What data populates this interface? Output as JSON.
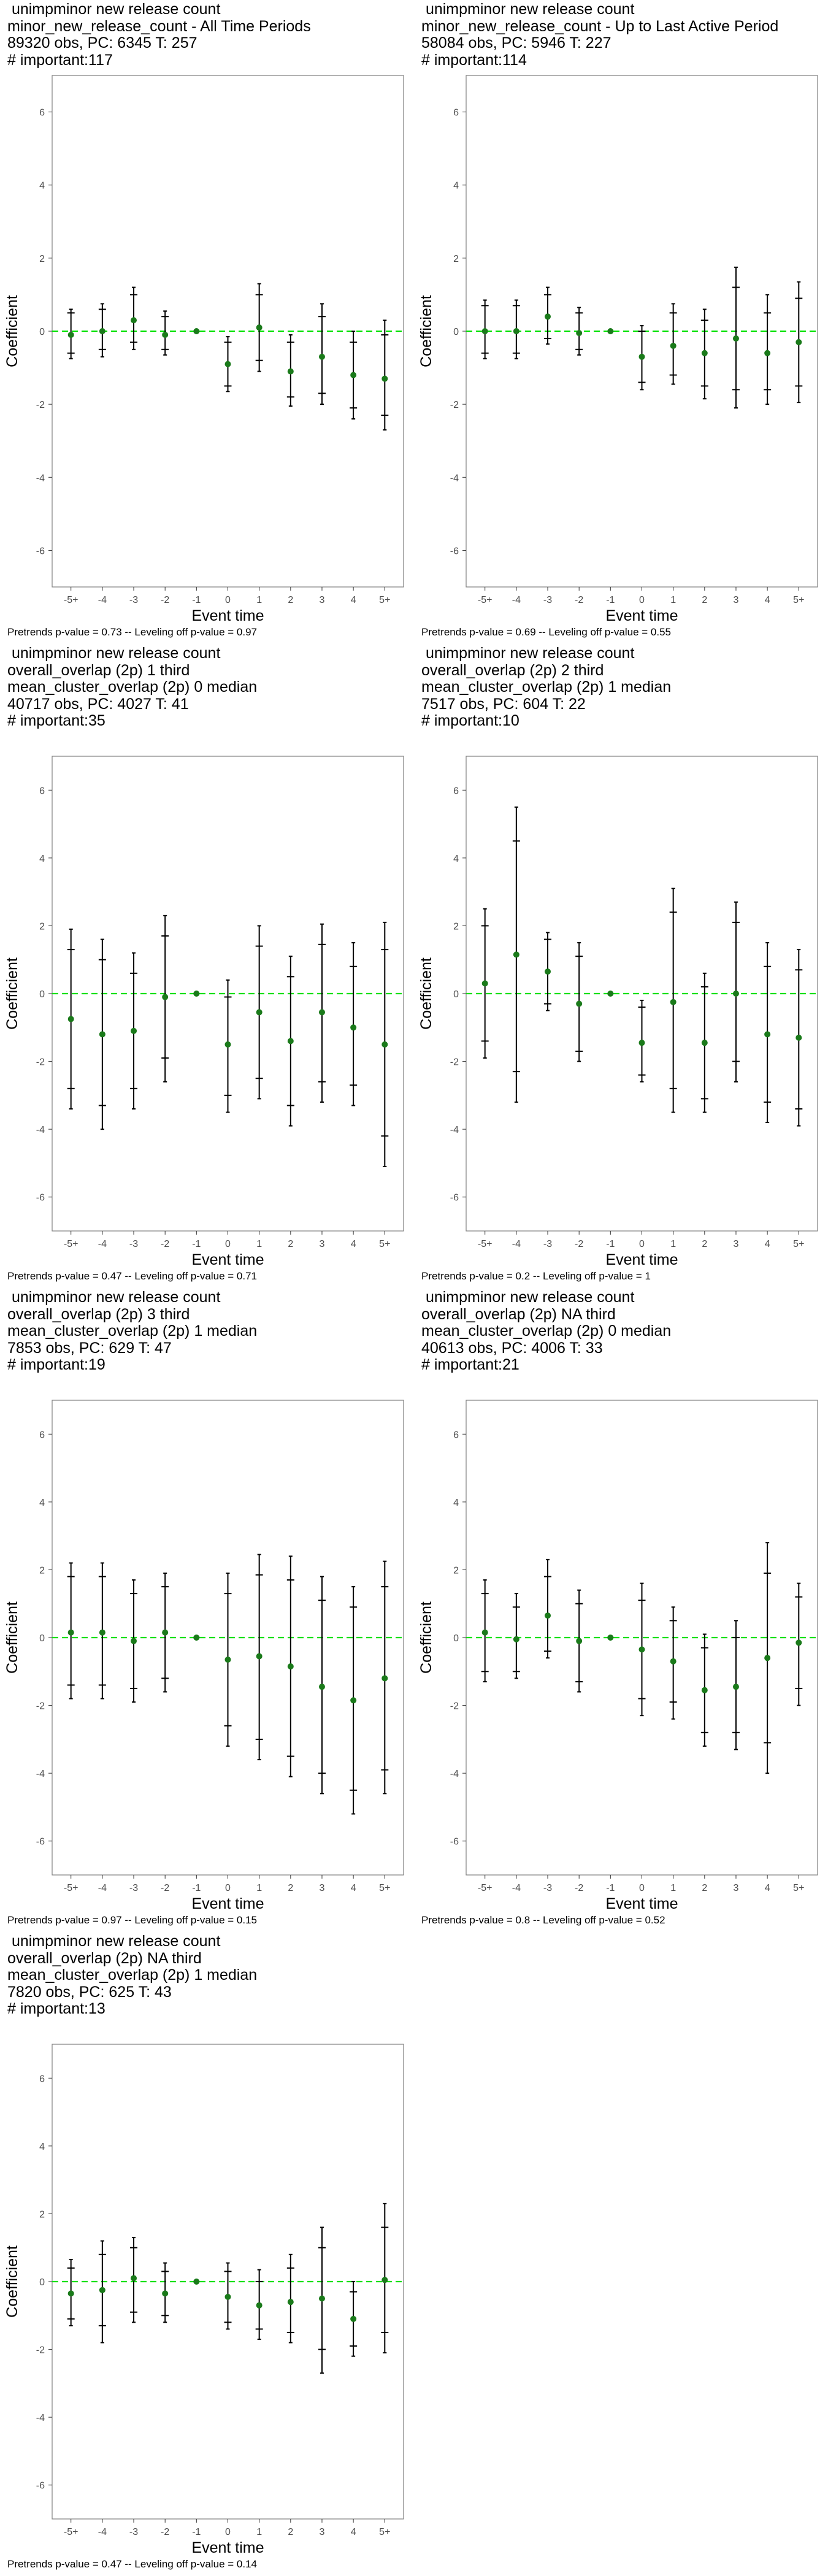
{
  "chart_data": [
    {
      "type": "scatter",
      "titles": [
        " unimpminor new release count",
        "minor_new_release_count - All Time Periods",
        "89320 obs, PC: 6345 T: 257",
        "# important:117"
      ],
      "xlabel": "Event time",
      "ylabel": "Coefficient",
      "ylim": [
        -7,
        7
      ],
      "yticks": [
        -6,
        -4,
        -2,
        0,
        2,
        4,
        6
      ],
      "categories": [
        "-5+",
        "-4",
        "-3",
        "-2",
        "-1",
        "0",
        "1",
        "2",
        "3",
        "4",
        "5+"
      ],
      "points": [
        {
          "x": "-5+",
          "y": -0.1,
          "ci": [
            -0.6,
            0.5
          ],
          "ci_outer": [
            -0.75,
            0.6
          ]
        },
        {
          "x": "-4",
          "y": 0.0,
          "ci": [
            -0.5,
            0.6
          ],
          "ci_outer": [
            -0.7,
            0.75
          ]
        },
        {
          "x": "-3",
          "y": 0.3,
          "ci": [
            -0.3,
            1.0
          ],
          "ci_outer": [
            -0.5,
            1.2
          ]
        },
        {
          "x": "-2",
          "y": -0.1,
          "ci": [
            -0.5,
            0.4
          ],
          "ci_outer": [
            -0.65,
            0.55
          ]
        },
        {
          "x": "-1",
          "y": 0.0
        },
        {
          "x": "0",
          "y": -0.9,
          "ci": [
            -1.5,
            -0.3
          ],
          "ci_outer": [
            -1.65,
            -0.15
          ]
        },
        {
          "x": "1",
          "y": 0.1,
          "ci": [
            -0.8,
            1.0
          ],
          "ci_outer": [
            -1.1,
            1.3
          ]
        },
        {
          "x": "2",
          "y": -1.1,
          "ci": [
            -1.8,
            -0.3
          ],
          "ci_outer": [
            -2.05,
            -0.1
          ]
        },
        {
          "x": "3",
          "y": -0.7,
          "ci": [
            -1.7,
            0.4
          ],
          "ci_outer": [
            -2.0,
            0.75
          ]
        },
        {
          "x": "4",
          "y": -1.2,
          "ci": [
            -2.1,
            -0.3
          ],
          "ci_outer": [
            -2.4,
            0.0
          ]
        },
        {
          "x": "5+",
          "y": -1.3,
          "ci": [
            -2.3,
            -0.1
          ],
          "ci_outer": [
            -2.7,
            0.3
          ]
        }
      ],
      "footnote": "Pretrends p-value = 0.73 -- Leveling off p-value = 0.97"
    },
    {
      "type": "scatter",
      "titles": [
        " unimpminor new release count",
        "minor_new_release_count - Up to Last Active Period",
        "58084 obs, PC: 5946 T: 227",
        "# important:114"
      ],
      "xlabel": "Event time",
      "ylabel": "Coefficient",
      "ylim": [
        -7,
        7
      ],
      "yticks": [
        -6,
        -4,
        -2,
        0,
        2,
        4,
        6
      ],
      "categories": [
        "-5+",
        "-4",
        "-3",
        "-2",
        "-1",
        "0",
        "1",
        "2",
        "3",
        "4",
        "5+"
      ],
      "points": [
        {
          "x": "-5+",
          "y": 0.0,
          "ci": [
            -0.6,
            0.7
          ],
          "ci_outer": [
            -0.75,
            0.85
          ]
        },
        {
          "x": "-4",
          "y": 0.0,
          "ci": [
            -0.6,
            0.7
          ],
          "ci_outer": [
            -0.75,
            0.85
          ]
        },
        {
          "x": "-3",
          "y": 0.4,
          "ci": [
            -0.2,
            1.0
          ],
          "ci_outer": [
            -0.35,
            1.2
          ]
        },
        {
          "x": "-2",
          "y": -0.05,
          "ci": [
            -0.5,
            0.5
          ],
          "ci_outer": [
            -0.65,
            0.65
          ]
        },
        {
          "x": "-1",
          "y": 0.0
        },
        {
          "x": "0",
          "y": -0.7,
          "ci": [
            -1.4,
            0.0
          ],
          "ci_outer": [
            -1.6,
            0.15
          ]
        },
        {
          "x": "1",
          "y": -0.4,
          "ci": [
            -1.2,
            0.5
          ],
          "ci_outer": [
            -1.45,
            0.75
          ]
        },
        {
          "x": "2",
          "y": -0.6,
          "ci": [
            -1.5,
            0.3
          ],
          "ci_outer": [
            -1.85,
            0.6
          ]
        },
        {
          "x": "3",
          "y": -0.2,
          "ci": [
            -1.6,
            1.2
          ],
          "ci_outer": [
            -2.1,
            1.75
          ]
        },
        {
          "x": "4",
          "y": -0.6,
          "ci": [
            -1.6,
            0.5
          ],
          "ci_outer": [
            -2.0,
            1.0
          ]
        },
        {
          "x": "5+",
          "y": -0.3,
          "ci": [
            -1.5,
            0.9
          ],
          "ci_outer": [
            -1.95,
            1.35
          ]
        }
      ],
      "footnote": "Pretrends p-value = 0.69 -- Leveling off p-value = 0.55"
    },
    {
      "type": "scatter",
      "titles": [
        " unimpminor new release count",
        "overall_overlap (2p) 1 third",
        "mean_cluster_overlap (2p) 0 median",
        "40717 obs, PC: 4027 T: 41",
        "# important:35"
      ],
      "xlabel": "Event time",
      "ylabel": "Coefficient",
      "ylim": [
        -7,
        7
      ],
      "yticks": [
        -6,
        -4,
        -2,
        0,
        2,
        4,
        6
      ],
      "categories": [
        "-5+",
        "-4",
        "-3",
        "-2",
        "-1",
        "0",
        "1",
        "2",
        "3",
        "4",
        "5+"
      ],
      "points": [
        {
          "x": "-5+",
          "y": -0.75,
          "ci": [
            -2.8,
            1.3
          ],
          "ci_outer": [
            -3.4,
            1.9
          ]
        },
        {
          "x": "-4",
          "y": -1.2,
          "ci": [
            -3.3,
            1.0
          ],
          "ci_outer": [
            -4.0,
            1.6
          ]
        },
        {
          "x": "-3",
          "y": -1.1,
          "ci": [
            -2.8,
            0.6
          ],
          "ci_outer": [
            -3.4,
            1.2
          ]
        },
        {
          "x": "-2",
          "y": -0.1,
          "ci": [
            -1.9,
            1.7
          ],
          "ci_outer": [
            -2.6,
            2.3
          ]
        },
        {
          "x": "-1",
          "y": 0.0
        },
        {
          "x": "0",
          "y": -1.5,
          "ci": [
            -3.0,
            -0.1
          ],
          "ci_outer": [
            -3.5,
            0.4
          ]
        },
        {
          "x": "1",
          "y": -0.55,
          "ci": [
            -2.5,
            1.4
          ],
          "ci_outer": [
            -3.1,
            2.0
          ]
        },
        {
          "x": "2",
          "y": -1.4,
          "ci": [
            -3.3,
            0.5
          ],
          "ci_outer": [
            -3.9,
            1.1
          ]
        },
        {
          "x": "3",
          "y": -0.55,
          "ci": [
            -2.6,
            1.45
          ],
          "ci_outer": [
            -3.2,
            2.05
          ]
        },
        {
          "x": "4",
          "y": -1.0,
          "ci": [
            -2.7,
            0.8
          ],
          "ci_outer": [
            -3.3,
            1.5
          ]
        },
        {
          "x": "5+",
          "y": -1.5,
          "ci": [
            -4.2,
            1.3
          ],
          "ci_outer": [
            -5.1,
            2.1
          ]
        }
      ],
      "footnote": "Pretrends p-value = 0.47 -- Leveling off p-value = 0.71"
    },
    {
      "type": "scatter",
      "titles": [
        " unimpminor new release count",
        "overall_overlap (2p) 2 third",
        "mean_cluster_overlap (2p) 1 median",
        "7517 obs, PC: 604 T: 22",
        "# important:10"
      ],
      "xlabel": "Event time",
      "ylabel": "Coefficient",
      "ylim": [
        -7,
        7
      ],
      "yticks": [
        -6,
        -4,
        -2,
        0,
        2,
        4,
        6
      ],
      "categories": [
        "-5+",
        "-4",
        "-3",
        "-2",
        "-1",
        "0",
        "1",
        "2",
        "3",
        "4",
        "5+"
      ],
      "points": [
        {
          "x": "-5+",
          "y": 0.3,
          "ci": [
            -1.4,
            2.0
          ],
          "ci_outer": [
            -1.9,
            2.5
          ]
        },
        {
          "x": "-4",
          "y": 1.15,
          "ci": [
            -2.3,
            4.5
          ],
          "ci_outer": [
            -3.2,
            5.5
          ]
        },
        {
          "x": "-3",
          "y": 0.65,
          "ci": [
            -0.3,
            1.6
          ],
          "ci_outer": [
            -0.5,
            1.8
          ]
        },
        {
          "x": "-2",
          "y": -0.3,
          "ci": [
            -1.7,
            1.1
          ],
          "ci_outer": [
            -2.0,
            1.5
          ]
        },
        {
          "x": "-1",
          "y": 0.0
        },
        {
          "x": "0",
          "y": -1.45,
          "ci": [
            -2.4,
            -0.4
          ],
          "ci_outer": [
            -2.6,
            -0.2
          ]
        },
        {
          "x": "1",
          "y": -0.25,
          "ci": [
            -2.8,
            2.4
          ],
          "ci_outer": [
            -3.5,
            3.1
          ]
        },
        {
          "x": "2",
          "y": -1.45,
          "ci": [
            -3.1,
            0.2
          ],
          "ci_outer": [
            -3.5,
            0.6
          ]
        },
        {
          "x": "3",
          "y": 0.0,
          "ci": [
            -2.0,
            2.1
          ],
          "ci_outer": [
            -2.6,
            2.7
          ]
        },
        {
          "x": "4",
          "y": -1.2,
          "ci": [
            -3.2,
            0.8
          ],
          "ci_outer": [
            -3.8,
            1.5
          ]
        },
        {
          "x": "5+",
          "y": -1.3,
          "ci": [
            -3.4,
            0.7
          ],
          "ci_outer": [
            -3.9,
            1.3
          ]
        }
      ],
      "footnote": "Pretrends p-value = 0.2 -- Leveling off p-value = 1"
    },
    {
      "type": "scatter",
      "titles": [
        " unimpminor new release count",
        "overall_overlap (2p) 3 third",
        "mean_cluster_overlap (2p) 1 median",
        "7853 obs, PC: 629 T: 47",
        "# important:19"
      ],
      "xlabel": "Event time",
      "ylabel": "Coefficient",
      "ylim": [
        -7,
        7
      ],
      "yticks": [
        -6,
        -4,
        -2,
        0,
        2,
        4,
        6
      ],
      "categories": [
        "-5+",
        "-4",
        "-3",
        "-2",
        "-1",
        "0",
        "1",
        "2",
        "3",
        "4",
        "5+"
      ],
      "points": [
        {
          "x": "-5+",
          "y": 0.15,
          "ci": [
            -1.4,
            1.8
          ],
          "ci_outer": [
            -1.8,
            2.2
          ]
        },
        {
          "x": "-4",
          "y": 0.15,
          "ci": [
            -1.4,
            1.8
          ],
          "ci_outer": [
            -1.8,
            2.2
          ]
        },
        {
          "x": "-3",
          "y": -0.1,
          "ci": [
            -1.5,
            1.3
          ],
          "ci_outer": [
            -1.9,
            1.7
          ]
        },
        {
          "x": "-2",
          "y": 0.15,
          "ci": [
            -1.2,
            1.5
          ],
          "ci_outer": [
            -1.6,
            1.9
          ]
        },
        {
          "x": "-1",
          "y": 0.0
        },
        {
          "x": "0",
          "y": -0.65,
          "ci": [
            -2.6,
            1.3
          ],
          "ci_outer": [
            -3.2,
            1.9
          ]
        },
        {
          "x": "1",
          "y": -0.55,
          "ci": [
            -3.0,
            1.85
          ],
          "ci_outer": [
            -3.6,
            2.45
          ]
        },
        {
          "x": "2",
          "y": -0.85,
          "ci": [
            -3.5,
            1.7
          ],
          "ci_outer": [
            -4.1,
            2.4
          ]
        },
        {
          "x": "3",
          "y": -1.45,
          "ci": [
            -4.0,
            1.1
          ],
          "ci_outer": [
            -4.6,
            1.8
          ]
        },
        {
          "x": "4",
          "y": -1.85,
          "ci": [
            -4.5,
            0.9
          ],
          "ci_outer": [
            -5.2,
            1.5
          ]
        },
        {
          "x": "5+",
          "y": -1.2,
          "ci": [
            -3.9,
            1.5
          ],
          "ci_outer": [
            -4.6,
            2.25
          ]
        }
      ],
      "footnote": "Pretrends p-value = 0.97 -- Leveling off p-value = 0.15"
    },
    {
      "type": "scatter",
      "titles": [
        " unimpminor new release count",
        "overall_overlap (2p) NA third",
        "mean_cluster_overlap (2p) 0 median",
        "40613 obs, PC: 4006 T: 33",
        "# important:21"
      ],
      "xlabel": "Event time",
      "ylabel": "Coefficient",
      "ylim": [
        -7,
        7
      ],
      "yticks": [
        -6,
        -4,
        -2,
        0,
        2,
        4,
        6
      ],
      "categories": [
        "-5+",
        "-4",
        "-3",
        "-2",
        "-1",
        "0",
        "1",
        "2",
        "3",
        "4",
        "5+"
      ],
      "points": [
        {
          "x": "-5+",
          "y": 0.15,
          "ci": [
            -1.0,
            1.3
          ],
          "ci_outer": [
            -1.3,
            1.7
          ]
        },
        {
          "x": "-4",
          "y": -0.05,
          "ci": [
            -1.0,
            0.9
          ],
          "ci_outer": [
            -1.2,
            1.3
          ]
        },
        {
          "x": "-3",
          "y": 0.65,
          "ci": [
            -0.4,
            1.8
          ],
          "ci_outer": [
            -0.6,
            2.3
          ]
        },
        {
          "x": "-2",
          "y": -0.1,
          "ci": [
            -1.3,
            1.0
          ],
          "ci_outer": [
            -1.6,
            1.4
          ]
        },
        {
          "x": "-1",
          "y": 0.0
        },
        {
          "x": "0",
          "y": -0.35,
          "ci": [
            -1.8,
            1.1
          ],
          "ci_outer": [
            -2.3,
            1.6
          ]
        },
        {
          "x": "1",
          "y": -0.7,
          "ci": [
            -1.9,
            0.5
          ],
          "ci_outer": [
            -2.4,
            0.9
          ]
        },
        {
          "x": "2",
          "y": -1.55,
          "ci": [
            -2.8,
            -0.3
          ],
          "ci_outer": [
            -3.2,
            0.1
          ]
        },
        {
          "x": "3",
          "y": -1.45,
          "ci": [
            -2.8,
            0.0
          ],
          "ci_outer": [
            -3.3,
            0.5
          ]
        },
        {
          "x": "4",
          "y": -0.6,
          "ci": [
            -3.1,
            1.9
          ],
          "ci_outer": [
            -4.0,
            2.8
          ]
        },
        {
          "x": "5+",
          "y": -0.15,
          "ci": [
            -1.5,
            1.2
          ],
          "ci_outer": [
            -2.0,
            1.6
          ]
        }
      ],
      "footnote": "Pretrends p-value = 0.8 -- Leveling off p-value = 0.52"
    },
    {
      "type": "scatter",
      "titles": [
        " unimpminor new release count",
        "overall_overlap (2p) NA third",
        "mean_cluster_overlap (2p) 1 median",
        "7820 obs, PC: 625 T: 43",
        "# important:13"
      ],
      "xlabel": "Event time",
      "ylabel": "Coefficient",
      "ylim": [
        -7,
        7
      ],
      "yticks": [
        -6,
        -4,
        -2,
        0,
        2,
        4,
        6
      ],
      "categories": [
        "-5+",
        "-4",
        "-3",
        "-2",
        "-1",
        "0",
        "1",
        "2",
        "3",
        "4",
        "5+"
      ],
      "points": [
        {
          "x": "-5+",
          "y": -0.35,
          "ci": [
            -1.1,
            0.4
          ],
          "ci_outer": [
            -1.3,
            0.65
          ]
        },
        {
          "x": "-4",
          "y": -0.25,
          "ci": [
            -1.3,
            0.8
          ],
          "ci_outer": [
            -1.8,
            1.2
          ]
        },
        {
          "x": "-3",
          "y": 0.1,
          "ci": [
            -0.9,
            1.0
          ],
          "ci_outer": [
            -1.2,
            1.3
          ]
        },
        {
          "x": "-2",
          "y": -0.35,
          "ci": [
            -1.0,
            0.3
          ],
          "ci_outer": [
            -1.2,
            0.55
          ]
        },
        {
          "x": "-1",
          "y": 0.0
        },
        {
          "x": "0",
          "y": -0.45,
          "ci": [
            -1.2,
            0.3
          ],
          "ci_outer": [
            -1.4,
            0.55
          ]
        },
        {
          "x": "1",
          "y": -0.7,
          "ci": [
            -1.4,
            0.0
          ],
          "ci_outer": [
            -1.7,
            0.35
          ]
        },
        {
          "x": "2",
          "y": -0.6,
          "ci": [
            -1.5,
            0.4
          ],
          "ci_outer": [
            -1.8,
            0.8
          ]
        },
        {
          "x": "3",
          "y": -0.5,
          "ci": [
            -2.0,
            1.0
          ],
          "ci_outer": [
            -2.7,
            1.6
          ]
        },
        {
          "x": "4",
          "y": -1.1,
          "ci": [
            -1.9,
            -0.3
          ],
          "ci_outer": [
            -2.2,
            0.0
          ]
        },
        {
          "x": "5+",
          "y": 0.05,
          "ci": [
            -1.5,
            1.6
          ],
          "ci_outer": [
            -2.1,
            2.3
          ]
        }
      ],
      "footnote": "Pretrends p-value = 0.47 -- Leveling off p-value = 0.14"
    }
  ],
  "colors": {
    "point": "#1a7a1a",
    "reference_line": "#00e000",
    "error_bar": "#000000",
    "panel_border": "#7f7f7f",
    "tick_label": "#4d4d4d"
  }
}
